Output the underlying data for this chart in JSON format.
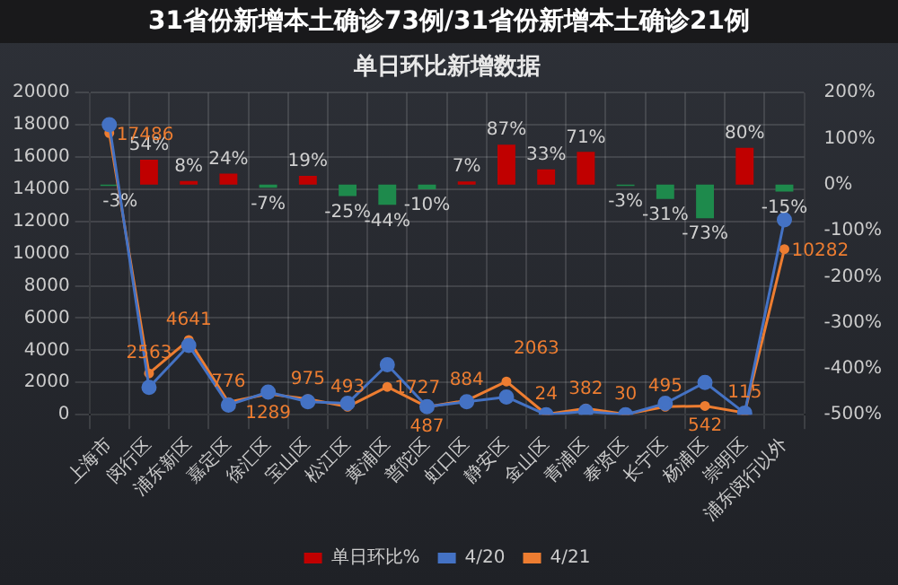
{
  "chart_data": {
    "type": "bar",
    "title": "单日环比新增数据",
    "annotations": [
      "31省份新增本土确诊73例/31省份新增本土确诊21例"
    ],
    "categories": [
      "上海市",
      "闵行区",
      "浦东新区",
      "嘉定区",
      "徐汇区",
      "宝山区",
      "松江区",
      "黄浦区",
      "普陀区",
      "虹口区",
      "静安区",
      "金山区",
      "青浦区",
      "奉贤区",
      "长宁区",
      "杨浦区",
      "崇明区",
      "浦东闵行以外"
    ],
    "series": [
      {
        "name": "单日环比%",
        "axis": "y2",
        "color": "#c00000",
        "colors": [
          "#1e8a4c",
          "#c00000",
          "#c00000",
          "#c00000",
          "#1e8a4c",
          "#c00000",
          "#1e8a4c",
          "#1e8a4c",
          "#1e8a4c",
          "#c00000",
          "#c00000",
          "#c00000",
          "#c00000",
          "#1e8a4c",
          "#1e8a4c",
          "#1e8a4c",
          "#c00000",
          "#1e8a4c"
        ],
        "values": [
          -3,
          54,
          8,
          24,
          -7,
          19,
          -25,
          -44,
          -10,
          7,
          87,
          33,
          71,
          -3,
          -31,
          -73,
          80,
          -15
        ],
        "value_labels": [
          "-3%",
          "54%",
          "8%",
          "24%",
          "-7%",
          "19%",
          "-25%",
          "-44%",
          "-10%",
          "7%",
          "87%",
          "33%",
          "71%",
          "-3%",
          "-31%",
          "-73%",
          "80%",
          "-15%"
        ]
      },
      {
        "name": "4/20",
        "type": "line",
        "color": "#4472c4",
        "values": [
          18000,
          1700,
          4300,
          600,
          1400,
          800,
          700,
          3100,
          500,
          800,
          1100,
          0,
          200,
          0,
          700,
          2000,
          100,
          12100
        ]
      },
      {
        "name": "4/21",
        "type": "line",
        "color": "#ed7d31",
        "values": [
          17486,
          2563,
          4641,
          776,
          1289,
          975,
          493,
          1727,
          487,
          884,
          2063,
          24,
          382,
          30,
          495,
          542,
          115,
          10282
        ],
        "value_labels": [
          "17486",
          "2563",
          "4641",
          "776",
          "1289",
          "975",
          "493",
          "1727",
          "487",
          "884",
          "2063",
          "24",
          "382",
          "30",
          "495",
          "542",
          "115",
          "10282"
        ]
      }
    ],
    "ylim": [
      0,
      20000
    ],
    "yticks": [
      0,
      2000,
      4000,
      6000,
      8000,
      10000,
      12000,
      14000,
      16000,
      18000,
      20000
    ],
    "y2lim": [
      -500,
      200
    ],
    "y2ticks": [
      {
        "value": -500,
        "label": "-500%"
      },
      {
        "value": -400,
        "label": "-400%"
      },
      {
        "value": -300,
        "label": "-300%"
      },
      {
        "value": -200,
        "label": "-200%"
      },
      {
        "value": -100,
        "label": "-100%"
      },
      {
        "value": 0,
        "label": "0%"
      },
      {
        "value": 100,
        "label": "100%"
      },
      {
        "value": 200,
        "label": "200%"
      }
    ],
    "grid": true,
    "legend": "bottom",
    "marker": "circle"
  }
}
